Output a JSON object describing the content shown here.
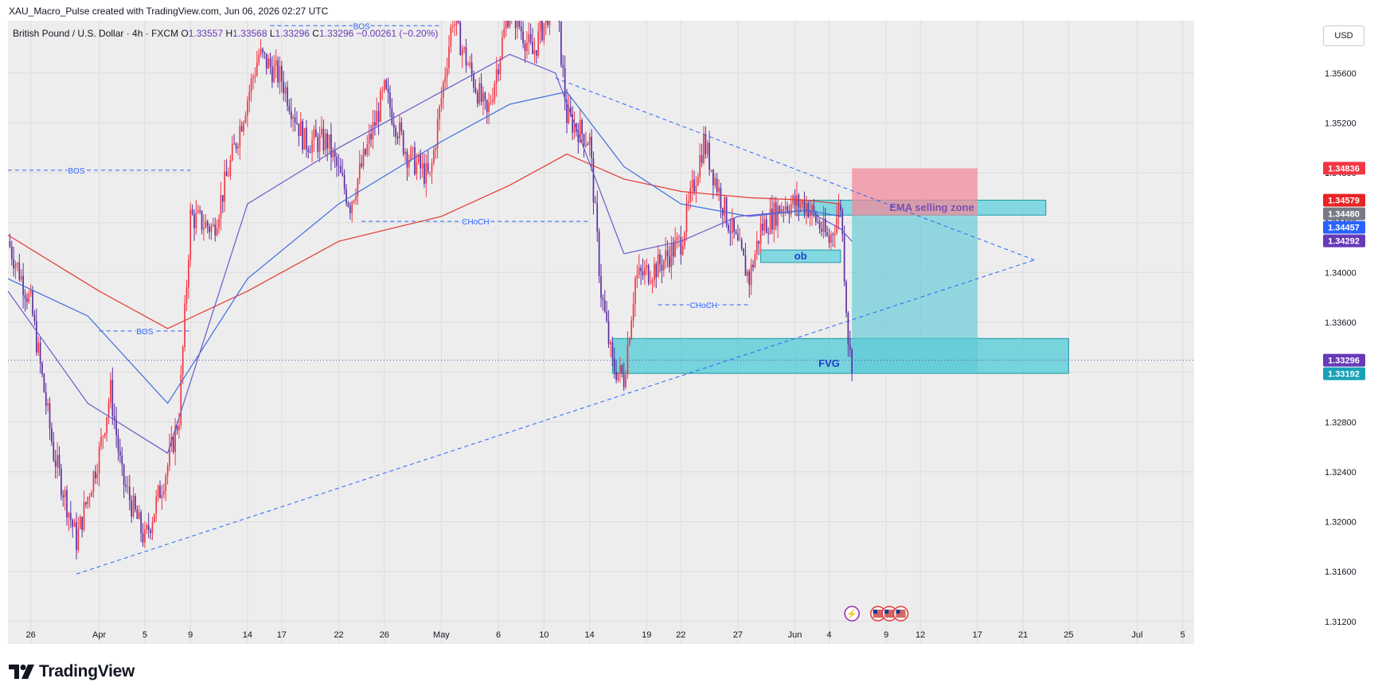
{
  "watermark": "XAU_Macro_Pulse created with TradingView.com, Jun 06, 2026 02:27 UTC",
  "brand": "TradingView",
  "currency_button": "USD",
  "chart_data": {
    "type": "candlestick",
    "symbol": "British Pound / U.S. Dollar · 4h · FXCM",
    "ohlc": {
      "o_label": "O",
      "o": "1.33557",
      "h_label": "H",
      "h": "1.33568",
      "l_label": "L",
      "l": "1.33296",
      "c_label": "C",
      "c": "1.33296",
      "change": "−0.00261 (−0.20%)"
    },
    "y_ticks": [
      "1.35600",
      "1.35200",
      "1.34800",
      "1.34400",
      "1.34000",
      "1.33600",
      "1.33200",
      "1.32800",
      "1.32400",
      "1.32000",
      "1.31600",
      "1.31200"
    ],
    "y_tick_values": [
      1.356,
      1.352,
      1.348,
      1.344,
      1.34,
      1.336,
      1.332,
      1.328,
      1.324,
      1.32,
      1.316,
      1.312
    ],
    "ylim": [
      1.3102,
      1.3602
    ],
    "x_ticks": [
      "26",
      "Apr",
      "5",
      "9",
      "14",
      "17",
      "22",
      "26",
      "May",
      "6",
      "10",
      "14",
      "19",
      "22",
      "27",
      "Jun",
      "4",
      "9",
      "12",
      "17",
      "21",
      "25",
      "Jul",
      "5"
    ],
    "x_range_dates": [
      "2026-03-24",
      "2026-07-06"
    ],
    "x_tick_dates": [
      "2026-03-26",
      "2026-04-01",
      "2026-04-05",
      "2026-04-09",
      "2026-04-14",
      "2026-04-17",
      "2026-04-22",
      "2026-04-26",
      "2026-05-01",
      "2026-05-06",
      "2026-05-10",
      "2026-05-14",
      "2026-05-19",
      "2026-05-22",
      "2026-05-27",
      "2026-06-01",
      "2026-06-04",
      "2026-06-09",
      "2026-06-12",
      "2026-06-17",
      "2026-06-21",
      "2026-06-25",
      "2026-07-01",
      "2026-07-05"
    ],
    "price_path": [
      [
        "2026-03-24",
        1.3425
      ],
      [
        "2026-03-26",
        1.3375
      ],
      [
        "2026-03-28",
        1.3255
      ],
      [
        "2026-03-30",
        1.3185
      ],
      [
        "2026-04-01",
        1.3255
      ],
      [
        "2026-04-02",
        1.3305
      ],
      [
        "2026-04-03",
        1.3235
      ],
      [
        "2026-04-05",
        1.3185
      ],
      [
        "2026-04-07",
        1.3245
      ],
      [
        "2026-04-08",
        1.3285
      ],
      [
        "2026-04-09",
        1.3445
      ],
      [
        "2026-04-11",
        1.3435
      ],
      [
        "2026-04-13",
        1.3505
      ],
      [
        "2026-04-15",
        1.3575
      ],
      [
        "2026-04-17",
        1.3555
      ],
      [
        "2026-04-19",
        1.3505
      ],
      [
        "2026-04-21",
        1.3505
      ],
      [
        "2026-04-23",
        1.3455
      ],
      [
        "2026-04-26",
        1.3545
      ],
      [
        "2026-04-28",
        1.3495
      ],
      [
        "2026-04-30",
        1.3475
      ],
      [
        "2026-05-02",
        1.3605
      ],
      [
        "2026-05-03",
        1.3575
      ],
      [
        "2026-05-05",
        1.3525
      ],
      [
        "2026-05-07",
        1.3615
      ],
      [
        "2026-05-09",
        1.3575
      ],
      [
        "2026-05-11",
        1.3625
      ],
      [
        "2026-05-12",
        1.3525
      ],
      [
        "2026-05-14",
        1.3505
      ],
      [
        "2026-05-15",
        1.3385
      ],
      [
        "2026-05-16",
        1.3325
      ],
      [
        "2026-05-17",
        1.3315
      ],
      [
        "2026-05-18",
        1.3395
      ],
      [
        "2026-05-20",
        1.3405
      ],
      [
        "2026-05-22",
        1.3425
      ],
      [
        "2026-05-24",
        1.3505
      ],
      [
        "2026-05-26",
        1.3445
      ],
      [
        "2026-05-28",
        1.3395
      ],
      [
        "2026-05-29",
        1.3435
      ],
      [
        "2026-05-31",
        1.3455
      ],
      [
        "2026-06-02",
        1.3455
      ],
      [
        "2026-06-04",
        1.3425
      ],
      [
        "2026-06-05",
        1.3455
      ],
      [
        "2026-06-05T18:00",
        1.3335
      ],
      [
        "2026-06-06",
        1.333
      ]
    ],
    "ema_red": [
      [
        "2026-03-24",
        1.343
      ],
      [
        "2026-04-01",
        1.3385
      ],
      [
        "2026-04-07",
        1.3355
      ],
      [
        "2026-04-14",
        1.3385
      ],
      [
        "2026-04-22",
        1.3425
      ],
      [
        "2026-05-01",
        1.3445
      ],
      [
        "2026-05-07",
        1.347
      ],
      [
        "2026-05-12",
        1.3495
      ],
      [
        "2026-05-17",
        1.3475
      ],
      [
        "2026-05-22",
        1.3465
      ],
      [
        "2026-05-28",
        1.346
      ],
      [
        "2026-06-02",
        1.3458
      ],
      [
        "2026-06-05",
        1.3455
      ]
    ],
    "ema_blue": [
      [
        "2026-03-24",
        1.3395
      ],
      [
        "2026-03-31",
        1.3365
      ],
      [
        "2026-04-07",
        1.3295
      ],
      [
        "2026-04-14",
        1.3395
      ],
      [
        "2026-04-22",
        1.3455
      ],
      [
        "2026-05-01",
        1.3505
      ],
      [
        "2026-05-07",
        1.3535
      ],
      [
        "2026-05-12",
        1.3545
      ],
      [
        "2026-05-17",
        1.3485
      ],
      [
        "2026-05-22",
        1.3455
      ],
      [
        "2026-05-28",
        1.3445
      ],
      [
        "2026-06-02",
        1.345
      ],
      [
        "2026-06-05",
        1.3445
      ]
    ],
    "ema_purple": [
      [
        "2026-03-24",
        1.3385
      ],
      [
        "2026-03-31",
        1.3295
      ],
      [
        "2026-04-07",
        1.3255
      ],
      [
        "2026-04-14",
        1.3455
      ],
      [
        "2026-04-22",
        1.35
      ],
      [
        "2026-05-01",
        1.3545
      ],
      [
        "2026-05-07",
        1.3575
      ],
      [
        "2026-05-11",
        1.356
      ],
      [
        "2026-05-17",
        1.3415
      ],
      [
        "2026-05-22",
        1.3425
      ],
      [
        "2026-05-27",
        1.3445
      ],
      [
        "2026-06-02",
        1.345
      ],
      [
        "2026-06-05",
        1.3435
      ],
      [
        "2026-06-06",
        1.3425
      ]
    ],
    "zones": [
      {
        "label": "EMA selling zone",
        "from": "2026-06-01",
        "to": "2026-06-23",
        "top": 1.3458,
        "bottom": 1.3446,
        "fill": "#5fd0dc"
      },
      {
        "label": "ob",
        "from": "2026-05-29",
        "to": "2026-06-05",
        "top": 1.3418,
        "bottom": 1.3408,
        "fill": "#5fd0dc"
      },
      {
        "label": "FVG",
        "from": "2026-05-16",
        "to": "2026-06-25",
        "top": 1.3347,
        "bottom": 1.3319,
        "fill": "#4fc9d6"
      }
    ],
    "position": {
      "from": "2026-06-06",
      "to": "2026-06-17",
      "stop": 1.34836,
      "entry": 1.34457,
      "target": 1.33192
    },
    "structure_labels": [
      {
        "text": "BOS",
        "price": 1.3598,
        "from": "2026-04-16",
        "to": "2026-05-01",
        "label_date": "2026-04-24"
      },
      {
        "text": "BOS",
        "price": 1.3482,
        "from": "2026-03-24",
        "to": "2026-04-09",
        "label_date": "2026-03-30"
      },
      {
        "text": "CHoCH",
        "price": 1.3441,
        "from": "2026-04-24",
        "to": "2026-05-14",
        "label_date": "2026-05-04"
      },
      {
        "text": "BOS",
        "price": 1.3353,
        "from": "2026-04-01",
        "to": "2026-04-09",
        "label_date": "2026-04-05"
      },
      {
        "text": "CHoCH",
        "price": 1.3374,
        "from": "2026-05-20",
        "to": "2026-05-28",
        "label_date": "2026-05-24"
      }
    ],
    "trendlines": [
      {
        "from": [
          "2026-03-30",
          1.3158
        ],
        "to": [
          "2026-06-22",
          1.341
        ]
      },
      {
        "from": [
          "2026-05-11",
          1.3556
        ],
        "to": [
          "2026-06-22",
          1.341
        ]
      }
    ],
    "last_price_line": 1.33296,
    "price_labels": [
      {
        "text": "1.34836",
        "value": 1.34836,
        "color": "#f23645"
      },
      {
        "text": "1.34579",
        "value": 1.34579,
        "color": "#e82323"
      },
      {
        "text": "1.34480",
        "value": 1.3448,
        "color": "#787b86"
      },
      {
        "text": "1.34457",
        "value": 1.34457,
        "color": "#2962ff"
      },
      {
        "text": "1.34292",
        "value": 1.34292,
        "color": "#673ab7"
      },
      {
        "text": "1.33296",
        "value": 1.33296,
        "color": "#673ab7"
      },
      {
        "text": "1.33192",
        "value": 1.33192,
        "color": "#17a2b8"
      }
    ],
    "grid": true
  }
}
